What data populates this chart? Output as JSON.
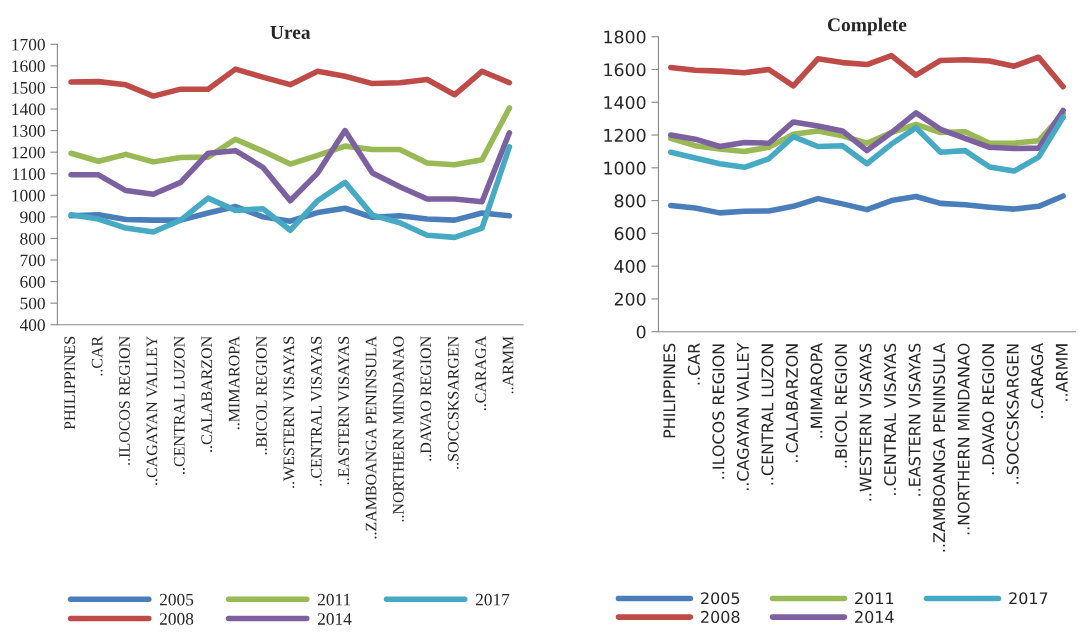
{
  "chart_data": [
    {
      "type": "line",
      "title": "Urea",
      "categories": [
        "PHILIPPINES",
        "..CAR",
        "..ILOCOS REGION",
        "..CAGAYAN VALLEY",
        "..CENTRAL LUZON",
        "..CALABARZON",
        "..MIMAROPA",
        "..BICOL REGION",
        "..WESTERN VISAYAS",
        "..CENTRAL VISAYAS",
        "..EASTERN VISAYAS",
        "..ZAMBOANGA PENINSULA",
        "..NORTHERN MINDANAO",
        "..DAVAO REGION",
        "..SOCCSKSARGEN",
        "..CARAGA",
        "..ARMM"
      ],
      "series": [
        {
          "name": "2005",
          "color": "#4a7ebb",
          "values": [
            905,
            910,
            888,
            885,
            885,
            918,
            948,
            900,
            880,
            920,
            940,
            898,
            905,
            890,
            885,
            918,
            905
          ]
        },
        {
          "name": "2008",
          "color": "#be4b48",
          "values": [
            1525,
            1527,
            1512,
            1460,
            1492,
            1492,
            1585,
            1548,
            1513,
            1575,
            1552,
            1518,
            1522,
            1537,
            1466,
            1575,
            1522
          ]
        },
        {
          "name": "2011",
          "color": "#98b954",
          "values": [
            1195,
            1158,
            1190,
            1155,
            1175,
            1177,
            1260,
            1205,
            1145,
            1185,
            1228,
            1212,
            1212,
            1150,
            1142,
            1165,
            1405
          ]
        },
        {
          "name": "2014",
          "color": "#7d60a0",
          "values": [
            1095,
            1095,
            1022,
            1005,
            1060,
            1195,
            1207,
            1130,
            975,
            1103,
            1300,
            1103,
            1040,
            983,
            983,
            970,
            1290
          ]
        },
        {
          "name": "2017",
          "color": "#46aac5",
          "values": [
            910,
            890,
            848,
            830,
            885,
            987,
            930,
            938,
            838,
            975,
            1060,
            908,
            873,
            815,
            805,
            848,
            1225
          ]
        }
      ],
      "ylim": [
        400,
        1700
      ],
      "yticks": [
        400,
        500,
        600,
        700,
        800,
        900,
        1000,
        1100,
        1200,
        1300,
        1400,
        1500,
        1600,
        1700
      ],
      "grid": false,
      "legend": "bottom",
      "marker": "none",
      "line_style": "solid"
    },
    {
      "type": "line",
      "title": "Complete",
      "categories": [
        "PHILIPPINES",
        "..CAR",
        "..ILOCOS REGION",
        "..CAGAYAN VALLEY",
        "..CENTRAL LUZON",
        "..CALABARZON",
        "..MIMAROPA",
        "..BICOL REGION",
        "..WESTERN VISAYAS",
        "..CENTRAL VISAYAS",
        "..EASTERN VISAYAS",
        "..ZAMBOANGA PENINSULA",
        "..NORTHERN MINDANAO",
        "..DAVAO REGION",
        "..SOCCSKSARGEN",
        "..CARAGA",
        "..ARMM"
      ],
      "series": [
        {
          "name": "2005",
          "color": "#4a7ebb",
          "values": [
            770,
            755,
            725,
            735,
            737,
            765,
            812,
            780,
            745,
            800,
            825,
            783,
            775,
            760,
            748,
            765,
            828
          ]
        },
        {
          "name": "2008",
          "color": "#be4b48",
          "values": [
            1612,
            1595,
            1590,
            1580,
            1600,
            1500,
            1665,
            1642,
            1630,
            1685,
            1565,
            1655,
            1660,
            1652,
            1620,
            1675,
            1495
          ]
        },
        {
          "name": "2011",
          "color": "#98b954",
          "values": [
            1180,
            1135,
            1115,
            1100,
            1125,
            1205,
            1225,
            1195,
            1150,
            1215,
            1265,
            1215,
            1220,
            1150,
            1150,
            1165,
            1330
          ]
        },
        {
          "name": "2014",
          "color": "#7d60a0",
          "values": [
            1200,
            1175,
            1130,
            1155,
            1150,
            1280,
            1255,
            1225,
            1105,
            1215,
            1335,
            1235,
            1180,
            1125,
            1118,
            1120,
            1350
          ]
        },
        {
          "name": "2017",
          "color": "#46aac5",
          "values": [
            1095,
            1060,
            1025,
            1003,
            1055,
            1190,
            1130,
            1135,
            1025,
            1145,
            1245,
            1095,
            1105,
            1005,
            980,
            1065,
            1310
          ]
        }
      ],
      "ylim": [
        0,
        1800
      ],
      "yticks": [
        0,
        200,
        400,
        600,
        800,
        1000,
        1200,
        1400,
        1600,
        1800
      ],
      "grid": false,
      "legend": "bottom",
      "marker": "none",
      "line_style": "solid"
    }
  ]
}
